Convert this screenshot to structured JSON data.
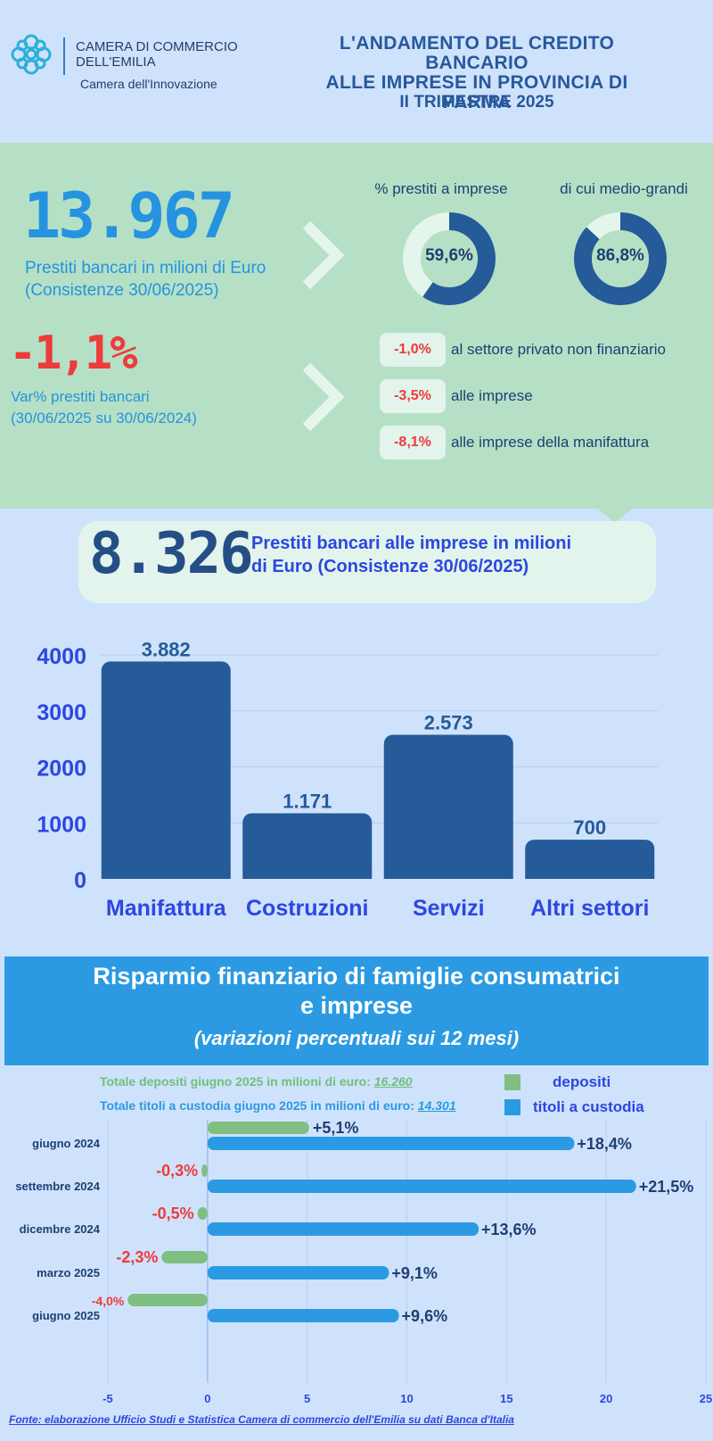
{
  "header": {
    "org_line1": "CAMERA DI COMMERCIO",
    "org_line2": "DELL'EMILIA",
    "org_tagline": "Camera dell'Innovazione",
    "title_line1": "L'ANDAMENTO DEL CREDITO BANCARIO",
    "title_line2": "ALLE IMPRESE IN PROVINCIA DI PARMA",
    "period": "II TRIMESTRE 2025"
  },
  "kpi": {
    "total_loans": "13.967",
    "total_loans_desc1": "Prestiti bancari in milioni di Euro",
    "total_loans_desc2": "(Consistenze 30/06/2025)",
    "var": "-1,1%",
    "var_desc1": "Var% prestiti bancari",
    "var_desc2": "(30/06/2025 su 30/06/2024)",
    "donut1": {
      "label": "%  prestiti a imprese",
      "text": "59,6%",
      "value": 59.6
    },
    "donut2": {
      "label": "di cui medio-grandi",
      "text": "86,8%",
      "value": 86.8
    },
    "changes": [
      {
        "value": "-1,0%",
        "label": "al settore privato non finanziario"
      },
      {
        "value": "-3,5%",
        "label": "alle imprese"
      },
      {
        "value": "-8,1%",
        "label": "alle imprese della manifattura"
      }
    ],
    "business_loans": "8.326",
    "business_loans_desc1": "Prestiti bancari alle imprese in milioni",
    "business_loans_desc2": "di Euro (Consistenze 30/06/2025)"
  },
  "savings": {
    "title_line1": "Risparmio finanziario di famiglie consumatrici",
    "title_line2": "e imprese",
    "subtitle": "(variazioni percentuali sui 12 mesi)",
    "total_deposits_label": "Totale depositi giugno 2025 in milioni di euro: ",
    "total_deposits_value": "16.260",
    "total_securities_label": "Totale titoli a custodia giugno 2025 in milioni di euro: ",
    "total_securities_value": "14.301"
  },
  "source": "Fonte: elaborazione Ufficio Studi e Statistica Camera di commercio dell'Emilia su dati Banca d'Italia",
  "colors": {
    "bar_dark": "#245b98",
    "deposits": "#7fbf82",
    "securities": "#2b9ae2",
    "negative": "#ee3b3b",
    "axis_label": "#2c47e0"
  },
  "chart_data": [
    {
      "type": "bar",
      "categories": [
        "Manifattura",
        "Costruzioni",
        "Servizi",
        "Altri settori"
      ],
      "values": [
        3882,
        1171,
        2573,
        700
      ],
      "value_labels": [
        "3.882",
        "1.171",
        "2.573",
        "700"
      ],
      "yticks": [
        "0",
        "1000",
        "2000",
        "3000",
        "4000"
      ],
      "ylim": [
        0,
        4000
      ],
      "grid": true
    },
    {
      "type": "bar",
      "orientation": "horizontal",
      "categories": [
        "giugno 2024",
        "settembre 2024",
        "dicembre 2024",
        "marzo 2025",
        "giugno 2025"
      ],
      "series": [
        {
          "name": "depositi",
          "values": [
            5.1,
            -0.3,
            -0.5,
            -2.3,
            -4.0
          ],
          "labels": [
            "+5,1%",
            "-0,3%",
            "-0,5%",
            "-2,3%",
            "-4,0%"
          ]
        },
        {
          "name": "titoli a custodia",
          "values": [
            18.4,
            21.5,
            13.6,
            9.1,
            9.6
          ],
          "labels": [
            "+18,4%",
            "+21,5%",
            "+13,6%",
            "+9,1%",
            "+9,6%"
          ]
        }
      ],
      "xticks": [
        "-5",
        "0",
        "5",
        "10",
        "15",
        "20",
        "25"
      ],
      "xlim": [
        -5,
        25
      ],
      "legend": "top-right",
      "grid": true
    }
  ]
}
